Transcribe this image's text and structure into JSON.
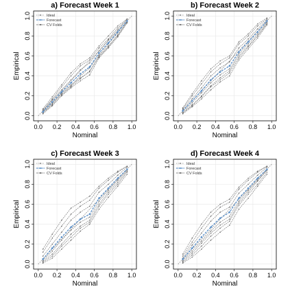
{
  "colors": {
    "ideal": "#888888",
    "forecast": "#5b8fc7",
    "cv_folds": "#555555",
    "grid": "#e6e6e6",
    "frame": "#000000"
  },
  "chart_data": [
    {
      "type": "line",
      "title": "a) Forecast Week 1",
      "xlabel": "Nominal",
      "ylabel": "Empirical",
      "xlim": [
        -0.05,
        1.05
      ],
      "ylim": [
        -0.05,
        1.05
      ],
      "xticks": [
        "0.0",
        "0.2",
        "0.4",
        "0.6",
        "0.8",
        "1.0"
      ],
      "yticks": [
        "0.0",
        "0.2",
        "0.4",
        "0.6",
        "0.8",
        "1.0"
      ],
      "grid": true,
      "legend_position": "top-left",
      "legend": [
        "Ideal",
        "Forecast",
        "CV Folds"
      ],
      "x": [
        0.05,
        0.15,
        0.25,
        0.35,
        0.45,
        0.55,
        0.65,
        0.75,
        0.85,
        0.95
      ],
      "ideal": [
        [
          0,
          0
        ],
        [
          1,
          1
        ]
      ],
      "forecast": [
        0.04,
        0.14,
        0.24,
        0.33,
        0.42,
        0.49,
        0.63,
        0.73,
        0.84,
        0.95
      ],
      "cv_folds": [
        [
          0.03,
          0.12,
          0.23,
          0.31,
          0.38,
          0.44,
          0.6,
          0.7,
          0.8,
          0.94
        ],
        [
          0.06,
          0.17,
          0.29,
          0.4,
          0.5,
          0.56,
          0.68,
          0.77,
          0.88,
          0.96
        ],
        [
          0.02,
          0.1,
          0.2,
          0.28,
          0.35,
          0.41,
          0.58,
          0.68,
          0.79,
          0.93
        ],
        [
          0.05,
          0.16,
          0.26,
          0.36,
          0.46,
          0.53,
          0.65,
          0.76,
          0.86,
          0.97
        ],
        [
          0.04,
          0.13,
          0.22,
          0.3,
          0.4,
          0.48,
          0.61,
          0.72,
          0.83,
          0.95
        ],
        [
          0.07,
          0.19,
          0.31,
          0.43,
          0.52,
          0.58,
          0.7,
          0.8,
          0.9,
          0.97
        ],
        [
          0.03,
          0.11,
          0.21,
          0.29,
          0.37,
          0.45,
          0.59,
          0.69,
          0.81,
          0.94
        ]
      ]
    },
    {
      "type": "line",
      "title": "b) Forecast Week 2",
      "xlabel": "Nominal",
      "ylabel": "Empirical",
      "xlim": [
        -0.05,
        1.05
      ],
      "ylim": [
        -0.05,
        1.05
      ],
      "xticks": [
        "0.0",
        "0.2",
        "0.4",
        "0.6",
        "0.8",
        "1.0"
      ],
      "yticks": [
        "0.0",
        "0.2",
        "0.4",
        "0.6",
        "0.8",
        "1.0"
      ],
      "grid": true,
      "legend_position": "top-left",
      "legend": [
        "Ideal",
        "Forecast",
        "CV Folds"
      ],
      "x": [
        0.05,
        0.15,
        0.25,
        0.35,
        0.45,
        0.55,
        0.65,
        0.75,
        0.85,
        0.95
      ],
      "ideal": [
        [
          0,
          0
        ],
        [
          1,
          1
        ]
      ],
      "forecast": [
        0.05,
        0.15,
        0.25,
        0.36,
        0.44,
        0.5,
        0.64,
        0.74,
        0.84,
        0.95
      ],
      "cv_folds": [
        [
          0.03,
          0.1,
          0.2,
          0.3,
          0.38,
          0.45,
          0.6,
          0.7,
          0.8,
          0.92
        ],
        [
          0.07,
          0.2,
          0.32,
          0.44,
          0.52,
          0.58,
          0.72,
          0.8,
          0.9,
          0.97
        ],
        [
          0.02,
          0.09,
          0.17,
          0.26,
          0.34,
          0.4,
          0.56,
          0.67,
          0.78,
          0.91
        ],
        [
          0.06,
          0.17,
          0.28,
          0.4,
          0.48,
          0.54,
          0.68,
          0.77,
          0.87,
          0.96
        ],
        [
          0.04,
          0.13,
          0.23,
          0.33,
          0.41,
          0.47,
          0.62,
          0.72,
          0.82,
          0.94
        ],
        [
          0.08,
          0.22,
          0.35,
          0.47,
          0.55,
          0.6,
          0.74,
          0.82,
          0.92,
          0.98
        ],
        [
          0.03,
          0.11,
          0.19,
          0.29,
          0.36,
          0.43,
          0.58,
          0.69,
          0.8,
          0.93
        ]
      ]
    },
    {
      "type": "line",
      "title": "c) Forecast Week 3",
      "xlabel": "Nominal",
      "ylabel": "Empirical",
      "xlim": [
        -0.05,
        1.05
      ],
      "ylim": [
        -0.05,
        1.05
      ],
      "xticks": [
        "0.0",
        "0.2",
        "0.4",
        "0.6",
        "0.8",
        "1.0"
      ],
      "yticks": [
        "0.0",
        "0.2",
        "0.4",
        "0.6",
        "0.8",
        "1.0"
      ],
      "grid": true,
      "legend_position": "top-left",
      "legend": [
        "Ideal",
        "Forecast",
        "CV Folds"
      ],
      "x": [
        0.05,
        0.15,
        0.25,
        0.35,
        0.45,
        0.55,
        0.65,
        0.75,
        0.85,
        0.95
      ],
      "ideal": [
        [
          0,
          0
        ],
        [
          1,
          1
        ]
      ],
      "forecast": [
        0.05,
        0.16,
        0.27,
        0.37,
        0.45,
        0.5,
        0.66,
        0.76,
        0.86,
        0.95
      ],
      "cv_folds": [
        [
          0.02,
          0.08,
          0.18,
          0.27,
          0.36,
          0.42,
          0.58,
          0.7,
          0.8,
          0.92
        ],
        [
          0.12,
          0.26,
          0.38,
          0.5,
          0.58,
          0.64,
          0.76,
          0.84,
          0.92,
          0.98
        ],
        [
          0.01,
          0.06,
          0.15,
          0.24,
          0.33,
          0.4,
          0.55,
          0.67,
          0.78,
          0.9
        ],
        [
          0.08,
          0.2,
          0.32,
          0.44,
          0.52,
          0.58,
          0.72,
          0.8,
          0.89,
          0.97
        ],
        [
          0.04,
          0.13,
          0.24,
          0.34,
          0.42,
          0.47,
          0.63,
          0.74,
          0.84,
          0.94
        ],
        [
          0.15,
          0.3,
          0.44,
          0.56,
          0.62,
          0.68,
          0.78,
          0.86,
          0.93,
          0.98
        ],
        [
          0.03,
          0.1,
          0.2,
          0.3,
          0.38,
          0.44,
          0.6,
          0.72,
          0.82,
          0.93
        ]
      ]
    },
    {
      "type": "line",
      "title": "d) Forecast Week 4",
      "xlabel": "Nominal",
      "ylabel": "Empirical",
      "xlim": [
        -0.05,
        1.05
      ],
      "ylim": [
        -0.05,
        1.05
      ],
      "xticks": [
        "0.0",
        "0.2",
        "0.4",
        "0.6",
        "0.8",
        "1.0"
      ],
      "yticks": [
        "0.0",
        "0.2",
        "0.4",
        "0.6",
        "0.8",
        "1.0"
      ],
      "grid": true,
      "legend_position": "top-left",
      "legend": [
        "Ideal",
        "Forecast",
        "CV Folds"
      ],
      "x": [
        0.05,
        0.15,
        0.25,
        0.35,
        0.45,
        0.55,
        0.65,
        0.75,
        0.85,
        0.95
      ],
      "ideal": [
        [
          0,
          0
        ],
        [
          1,
          1
        ]
      ],
      "forecast": [
        0.05,
        0.16,
        0.27,
        0.37,
        0.46,
        0.52,
        0.66,
        0.76,
        0.86,
        0.95
      ],
      "cv_folds": [
        [
          0.02,
          0.09,
          0.18,
          0.28,
          0.36,
          0.43,
          0.59,
          0.7,
          0.8,
          0.92
        ],
        [
          0.08,
          0.22,
          0.36,
          0.48,
          0.57,
          0.62,
          0.75,
          0.84,
          0.92,
          0.98
        ],
        [
          0.01,
          0.07,
          0.15,
          0.24,
          0.32,
          0.39,
          0.55,
          0.66,
          0.78,
          0.9
        ],
        [
          0.06,
          0.19,
          0.31,
          0.43,
          0.52,
          0.57,
          0.71,
          0.8,
          0.89,
          0.97
        ],
        [
          0.04,
          0.13,
          0.23,
          0.33,
          0.42,
          0.48,
          0.63,
          0.74,
          0.84,
          0.94
        ],
        [
          0.1,
          0.26,
          0.4,
          0.52,
          0.6,
          0.65,
          0.77,
          0.86,
          0.93,
          0.98
        ],
        [
          0.03,
          0.11,
          0.21,
          0.31,
          0.39,
          0.45,
          0.61,
          0.72,
          0.83,
          0.94
        ]
      ]
    }
  ]
}
